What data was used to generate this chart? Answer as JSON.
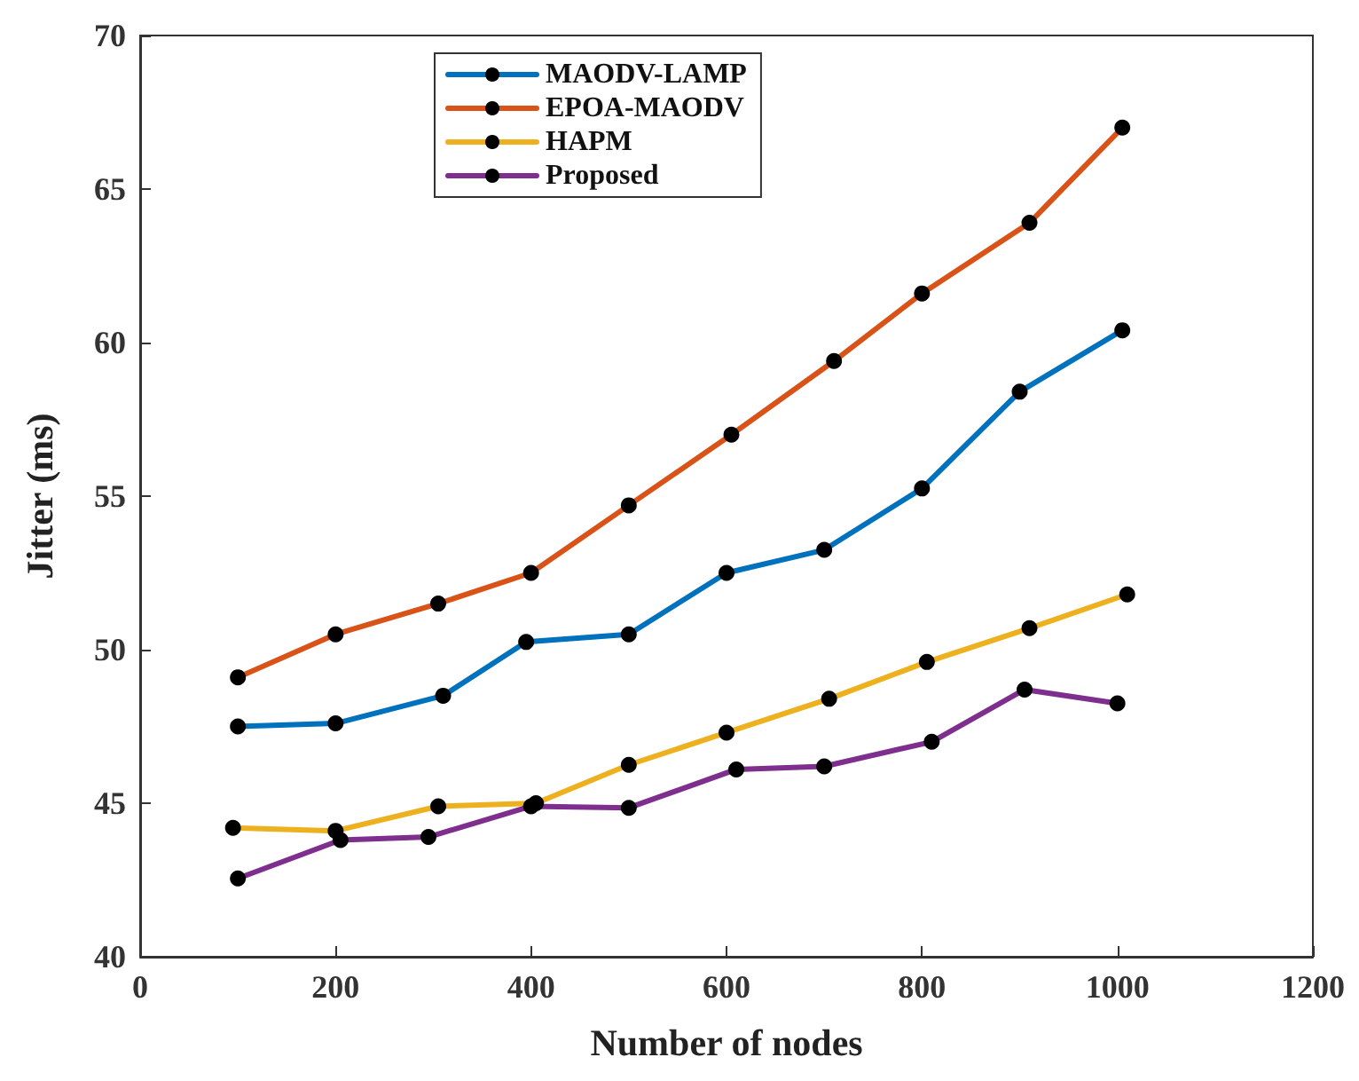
{
  "chart_data": {
    "type": "line",
    "xlabel": "Number of nodes",
    "ylabel": "Jitter (ms)",
    "xlim": [
      0,
      1200
    ],
    "xticks": [
      0,
      200,
      400,
      600,
      800,
      1000,
      1200
    ],
    "ylim": [
      40,
      70
    ],
    "yticks": [
      40,
      45,
      50,
      55,
      60,
      65,
      70
    ],
    "grid": false,
    "legend": "top",
    "marker": "circle",
    "line_style": "solid",
    "series": [
      {
        "name": "MAODV-LAMP",
        "color": "#0072bd",
        "x": [
          100,
          200,
          310,
          395,
          500,
          600,
          700,
          800,
          900,
          1005
        ],
        "values": [
          47.5,
          47.6,
          48.5,
          50.25,
          50.5,
          52.5,
          53.25,
          55.25,
          58.4,
          60.4
        ]
      },
      {
        "name": "EPOA-MAODV",
        "color": "#d95319",
        "x": [
          100,
          200,
          305,
          400,
          500,
          605,
          710,
          800,
          910,
          1005
        ],
        "values": [
          49.1,
          50.5,
          51.5,
          52.5,
          54.7,
          57.0,
          59.4,
          61.6,
          63.9,
          67.0
        ]
      },
      {
        "name": "HAPM",
        "color": "#edb120",
        "x": [
          95,
          200,
          305,
          405,
          500,
          600,
          705,
          805,
          910,
          1010
        ],
        "values": [
          44.2,
          44.1,
          44.9,
          45.0,
          46.25,
          47.3,
          48.4,
          49.6,
          50.7,
          51.8
        ]
      },
      {
        "name": "Proposed",
        "color": "#7e2f8e",
        "x": [
          100,
          205,
          295,
          400,
          500,
          610,
          700,
          810,
          905,
          1000
        ],
        "values": [
          42.55,
          43.8,
          43.9,
          44.9,
          44.85,
          46.1,
          46.2,
          47.0,
          48.7,
          48.25
        ]
      }
    ]
  }
}
